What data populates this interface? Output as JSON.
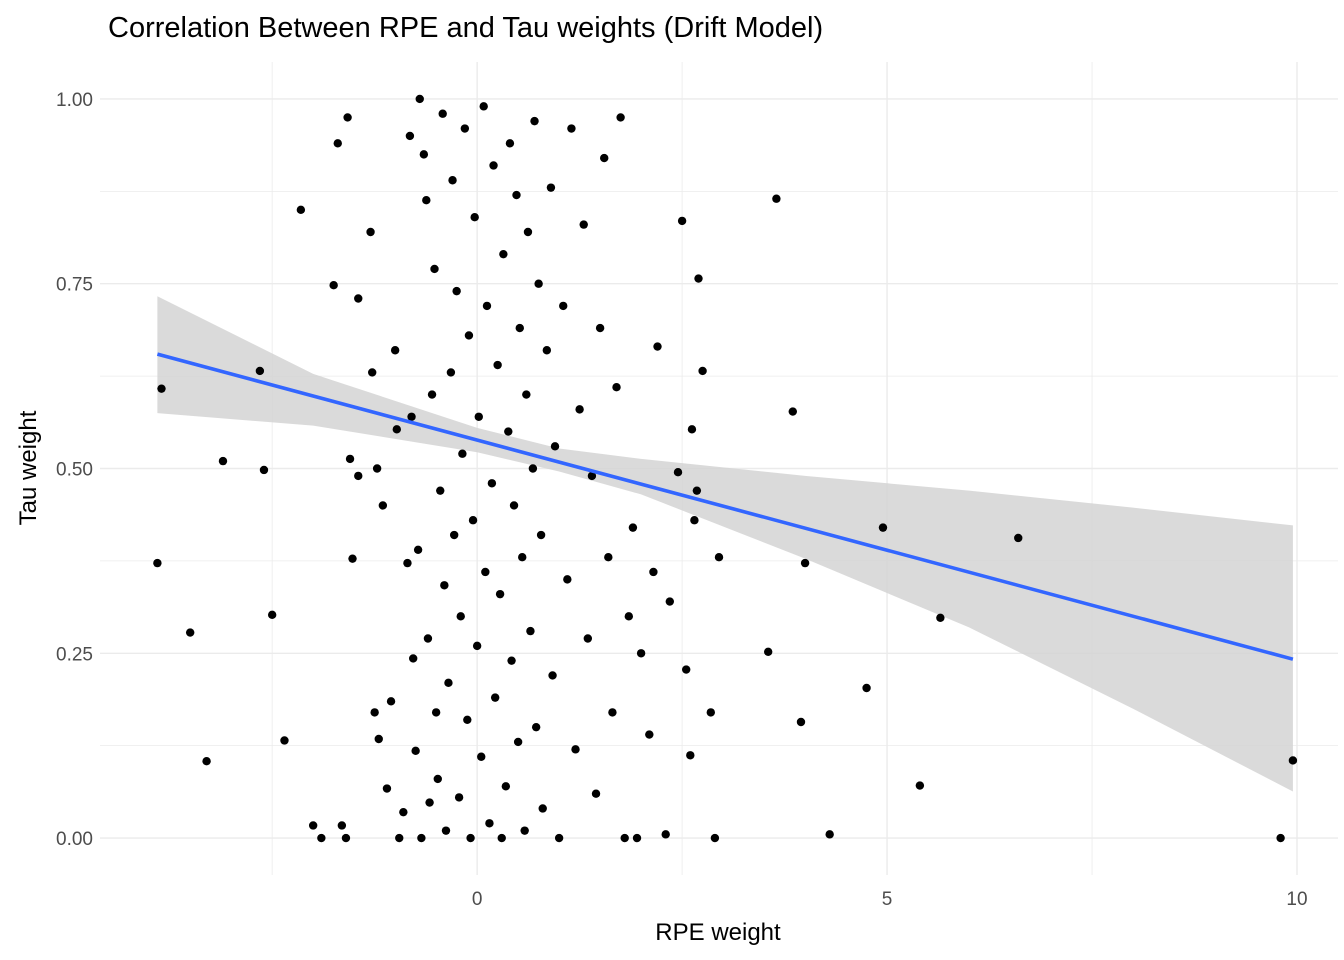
{
  "chart_data": {
    "type": "scatter",
    "title": "Correlation Between RPE and Tau weights (Drift Model)",
    "xlabel": "RPE weight",
    "ylabel": "Tau weight",
    "xlim": [
      -4.6,
      10.5
    ],
    "ylim": [
      -0.05,
      1.05
    ],
    "x_ticks": [
      0,
      5,
      10
    ],
    "y_ticks": [
      0.0,
      0.25,
      0.5,
      0.75,
      1.0
    ],
    "x_tick_labels": [
      "0",
      "5",
      "10"
    ],
    "y_tick_labels": [
      "0.00",
      "0.25",
      "0.50",
      "0.75",
      "1.00"
    ],
    "grid": true,
    "legend": "none",
    "point_color": "#000000",
    "smooth": {
      "method": "linear",
      "color": "#3366FF",
      "ribbon_color": "#d3d3d3",
      "x_range": [
        -3.9,
        9.95
      ],
      "intercept": 0.5385,
      "slope": -0.0298,
      "ribbon_upper": [
        [
          -3.9,
          0.733
        ],
        [
          -2.0,
          0.628
        ],
        [
          0.0,
          0.555
        ],
        [
          1.0,
          0.527
        ],
        [
          2.0,
          0.513
        ],
        [
          4.0,
          0.49
        ],
        [
          6.0,
          0.47
        ],
        [
          8.0,
          0.447
        ],
        [
          9.95,
          0.423
        ]
      ],
      "ribbon_lower": [
        [
          -3.9,
          0.575
        ],
        [
          -2.0,
          0.558
        ],
        [
          0.0,
          0.522
        ],
        [
          1.0,
          0.496
        ],
        [
          2.0,
          0.465
        ],
        [
          4.0,
          0.378
        ],
        [
          6.0,
          0.285
        ],
        [
          8.0,
          0.175
        ],
        [
          9.95,
          0.063
        ]
      ]
    },
    "points": [
      [
        -3.85,
        0.608
      ],
      [
        -3.9,
        0.372
      ],
      [
        -3.5,
        0.278
      ],
      [
        -3.3,
        0.104
      ],
      [
        -3.1,
        0.51
      ],
      [
        -2.65,
        0.632
      ],
      [
        -2.6,
        0.498
      ],
      [
        -2.5,
        0.302
      ],
      [
        -2.35,
        0.132
      ],
      [
        -2.15,
        0.85
      ],
      [
        -2.0,
        0.017
      ],
      [
        -1.9,
        0.0
      ],
      [
        -1.75,
        0.748
      ],
      [
        -1.7,
        0.94
      ],
      [
        -1.65,
        0.017
      ],
      [
        -1.6,
        0.0
      ],
      [
        -1.58,
        0.975
      ],
      [
        -1.55,
        0.513
      ],
      [
        -1.52,
        0.378
      ],
      [
        -1.45,
        0.73
      ],
      [
        -1.45,
        0.49
      ],
      [
        -1.3,
        0.82
      ],
      [
        -1.28,
        0.63
      ],
      [
        -1.25,
        0.17
      ],
      [
        -1.22,
        0.5
      ],
      [
        -1.2,
        0.134
      ],
      [
        -1.15,
        0.45
      ],
      [
        -1.1,
        0.067
      ],
      [
        -1.05,
        0.185
      ],
      [
        -1.0,
        0.66
      ],
      [
        -0.98,
        0.553
      ],
      [
        -0.95,
        0.0
      ],
      [
        -0.9,
        0.035
      ],
      [
        -0.85,
        0.372
      ],
      [
        -0.82,
        0.95
      ],
      [
        -0.8,
        0.57
      ],
      [
        -0.78,
        0.243
      ],
      [
        -0.75,
        0.118
      ],
      [
        -0.72,
        0.39
      ],
      [
        -0.7,
        1.0
      ],
      [
        -0.68,
        0.0
      ],
      [
        -0.65,
        0.925
      ],
      [
        -0.62,
        0.863
      ],
      [
        -0.6,
        0.27
      ],
      [
        -0.58,
        0.048
      ],
      [
        -0.55,
        0.6
      ],
      [
        -0.52,
        0.77
      ],
      [
        -0.5,
        0.17
      ],
      [
        -0.48,
        0.08
      ],
      [
        -0.45,
        0.47
      ],
      [
        -0.42,
        0.98
      ],
      [
        -0.4,
        0.342
      ],
      [
        -0.38,
        0.01
      ],
      [
        -0.35,
        0.21
      ],
      [
        -0.32,
        0.63
      ],
      [
        -0.3,
        0.89
      ],
      [
        -0.28,
        0.41
      ],
      [
        -0.25,
        0.74
      ],
      [
        -0.22,
        0.055
      ],
      [
        -0.2,
        0.3
      ],
      [
        -0.18,
        0.52
      ],
      [
        -0.15,
        0.96
      ],
      [
        -0.12,
        0.16
      ],
      [
        -0.1,
        0.68
      ],
      [
        -0.08,
        0.0
      ],
      [
        -0.05,
        0.43
      ],
      [
        -0.03,
        0.84
      ],
      [
        0.0,
        0.26
      ],
      [
        0.02,
        0.57
      ],
      [
        0.05,
        0.11
      ],
      [
        0.08,
        0.99
      ],
      [
        0.1,
        0.36
      ],
      [
        0.12,
        0.72
      ],
      [
        0.15,
        0.02
      ],
      [
        0.18,
        0.48
      ],
      [
        0.2,
        0.91
      ],
      [
        0.22,
        0.19
      ],
      [
        0.25,
        0.64
      ],
      [
        0.28,
        0.33
      ],
      [
        0.3,
        0.0
      ],
      [
        0.32,
        0.79
      ],
      [
        0.35,
        0.07
      ],
      [
        0.38,
        0.55
      ],
      [
        0.4,
        0.94
      ],
      [
        0.42,
        0.24
      ],
      [
        0.45,
        0.45
      ],
      [
        0.48,
        0.87
      ],
      [
        0.5,
        0.13
      ],
      [
        0.52,
        0.69
      ],
      [
        0.55,
        0.38
      ],
      [
        0.58,
        0.01
      ],
      [
        0.6,
        0.6
      ],
      [
        0.62,
        0.82
      ],
      [
        0.65,
        0.28
      ],
      [
        0.68,
        0.5
      ],
      [
        0.7,
        0.97
      ],
      [
        0.72,
        0.15
      ],
      [
        0.75,
        0.75
      ],
      [
        0.78,
        0.41
      ],
      [
        0.8,
        0.04
      ],
      [
        0.85,
        0.66
      ],
      [
        0.9,
        0.88
      ],
      [
        0.92,
        0.22
      ],
      [
        0.95,
        0.53
      ],
      [
        1.0,
        0.0
      ],
      [
        1.05,
        0.72
      ],
      [
        1.1,
        0.35
      ],
      [
        1.15,
        0.96
      ],
      [
        1.2,
        0.12
      ],
      [
        1.25,
        0.58
      ],
      [
        1.3,
        0.83
      ],
      [
        1.35,
        0.27
      ],
      [
        1.4,
        0.49
      ],
      [
        1.45,
        0.06
      ],
      [
        1.5,
        0.69
      ],
      [
        1.55,
        0.92
      ],
      [
        1.6,
        0.38
      ],
      [
        1.65,
        0.17
      ],
      [
        1.7,
        0.61
      ],
      [
        1.75,
        0.975
      ],
      [
        1.8,
        0.0
      ],
      [
        1.85,
        0.3
      ],
      [
        1.9,
        0.42
      ],
      [
        1.95,
        0.0
      ],
      [
        2.0,
        0.25
      ],
      [
        2.1,
        0.14
      ],
      [
        2.15,
        0.36
      ],
      [
        2.2,
        0.665
      ],
      [
        2.3,
        0.005
      ],
      [
        2.35,
        0.32
      ],
      [
        2.45,
        0.495
      ],
      [
        2.5,
        0.835
      ],
      [
        2.55,
        0.228
      ],
      [
        2.6,
        0.112
      ],
      [
        2.62,
        0.553
      ],
      [
        2.65,
        0.43
      ],
      [
        2.68,
        0.47
      ],
      [
        2.7,
        0.757
      ],
      [
        2.75,
        0.632
      ],
      [
        2.85,
        0.17
      ],
      [
        2.9,
        0.0
      ],
      [
        2.95,
        0.38
      ],
      [
        3.55,
        0.252
      ],
      [
        3.65,
        0.865
      ],
      [
        3.85,
        0.577
      ],
      [
        3.95,
        0.157
      ],
      [
        4.0,
        0.372
      ],
      [
        4.3,
        0.005
      ],
      [
        4.75,
        0.203
      ],
      [
        4.95,
        0.42
      ],
      [
        5.4,
        0.071
      ],
      [
        5.65,
        0.298
      ],
      [
        6.6,
        0.406
      ],
      [
        9.8,
        0.0
      ],
      [
        9.95,
        0.105
      ]
    ]
  }
}
